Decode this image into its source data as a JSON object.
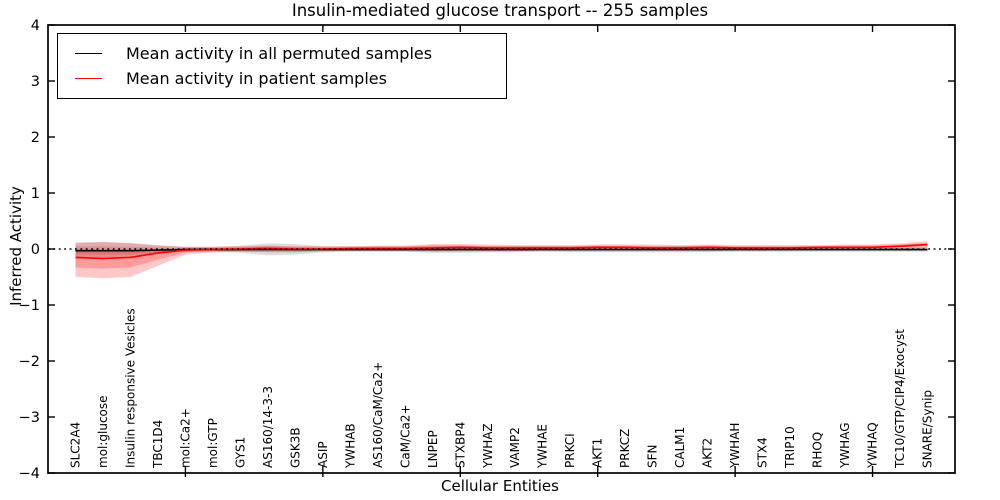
{
  "title": "Insulin-mediated glucose transport -- 255 samples",
  "legend": {
    "items": [
      {
        "label": "Mean activity in all permuted samples",
        "color": "#000000"
      },
      {
        "label": "Mean activity in patient samples",
        "color": "#ff0000"
      }
    ]
  },
  "chart_data": {
    "type": "line",
    "title": "Insulin-mediated glucose transport -- 255 samples",
    "xlabel": "Cellular Entities",
    "ylabel": "Inferred Activity",
    "ylim": [
      -4,
      4
    ],
    "yticks": [
      {
        "value": 4,
        "label": "4"
      },
      {
        "value": 3,
        "label": "3"
      },
      {
        "value": 2,
        "label": "2"
      },
      {
        "value": 1,
        "label": "1"
      },
      {
        "value": 0,
        "label": "0"
      },
      {
        "value": -1,
        "label": "−1"
      },
      {
        "value": -2,
        "label": "−2"
      },
      {
        "value": -3,
        "label": "−3"
      },
      {
        "value": -4,
        "label": "−4"
      }
    ],
    "x_major_tick_units": [
      5,
      10,
      15,
      20,
      25,
      30
    ],
    "zero_line": {
      "style": "dotted",
      "color": "#000000",
      "y": 0
    },
    "legend_position": "upper-left",
    "grid": false,
    "categories": [
      "SLC2A4",
      "mol:glucose",
      "Insulin responsive Vesicles",
      "TBC1D4",
      "mol:Ca2+",
      "mol:GTP",
      "GYS1",
      "AS160/14-3-3",
      "GSK3B",
      "ASIP",
      "YWHAB",
      "AS160/CaM/Ca2+",
      "CaM/Ca2+",
      "LNPEP",
      "STXBP4",
      "YWHAZ",
      "VAMP2",
      "YWHAE",
      "PRKCI",
      "AKT1",
      "PRKCZ",
      "SFN",
      "CALM1",
      "AKT2",
      "YWHAH",
      "STX4",
      "TRIP10",
      "RHOQ",
      "YWHAG",
      "YWHAQ",
      "TC10/GTP/CIP4/Exocyst",
      "SNARE/Synip"
    ],
    "series": [
      {
        "name": "Mean activity in all permuted samples",
        "color": "#000000",
        "values": [
          -0.03,
          -0.03,
          -0.03,
          -0.02,
          -0.01,
          -0.01,
          -0.01,
          -0.01,
          -0.01,
          -0.01,
          -0.01,
          -0.01,
          -0.01,
          -0.01,
          -0.01,
          -0.01,
          -0.01,
          -0.01,
          -0.01,
          -0.01,
          -0.01,
          -0.01,
          -0.01,
          -0.01,
          -0.01,
          -0.01,
          -0.01,
          -0.01,
          -0.01,
          -0.01,
          -0.01,
          -0.01
        ]
      },
      {
        "name": "Mean activity in patient samples",
        "color": "#ff0000",
        "values": [
          -0.15,
          -0.17,
          -0.15,
          -0.07,
          -0.02,
          -0.01,
          0.0,
          0.01,
          0.0,
          0.0,
          0.01,
          0.01,
          0.01,
          0.02,
          0.03,
          0.02,
          0.02,
          0.02,
          0.02,
          0.03,
          0.03,
          0.02,
          0.02,
          0.03,
          0.02,
          0.02,
          0.02,
          0.03,
          0.03,
          0.03,
          0.05,
          0.08
        ]
      }
    ],
    "bands": [
      {
        "name": "permuted-range-outer",
        "color": "#8a8a8a",
        "opacity": 0.3,
        "upper": [
          0.12,
          0.13,
          0.11,
          0.07,
          0.04,
          0.04,
          0.06,
          0.1,
          0.09,
          0.05,
          0.05,
          0.05,
          0.05,
          0.06,
          0.06,
          0.05,
          0.05,
          0.05,
          0.05,
          0.05,
          0.05,
          0.05,
          0.05,
          0.05,
          0.04,
          0.04,
          0.04,
          0.04,
          0.04,
          0.04,
          0.04,
          0.04
        ],
        "lower": [
          -0.15,
          -0.16,
          -0.14,
          -0.09,
          -0.05,
          -0.05,
          -0.07,
          -0.11,
          -0.1,
          -0.06,
          -0.05,
          -0.05,
          -0.05,
          -0.07,
          -0.07,
          -0.06,
          -0.06,
          -0.05,
          -0.06,
          -0.06,
          -0.06,
          -0.06,
          -0.06,
          -0.06,
          -0.05,
          -0.05,
          -0.05,
          -0.05,
          -0.05,
          -0.05,
          -0.05,
          -0.05
        ]
      },
      {
        "name": "permuted-range-inner",
        "color": "#8a8a8a",
        "opacity": 0.3,
        "upper": [
          0.05,
          0.05,
          0.04,
          0.03,
          0.02,
          0.02,
          0.03,
          0.05,
          0.04,
          0.02,
          0.02,
          0.02,
          0.02,
          0.03,
          0.03,
          0.02,
          0.02,
          0.02,
          0.02,
          0.02,
          0.02,
          0.02,
          0.02,
          0.02,
          0.02,
          0.02,
          0.02,
          0.02,
          0.02,
          0.02,
          0.02,
          0.02
        ],
        "lower": [
          -0.09,
          -0.1,
          -0.09,
          -0.06,
          -0.03,
          -0.03,
          -0.04,
          -0.06,
          -0.06,
          -0.04,
          -0.03,
          -0.03,
          -0.03,
          -0.04,
          -0.04,
          -0.04,
          -0.04,
          -0.03,
          -0.04,
          -0.04,
          -0.04,
          -0.04,
          -0.04,
          -0.04,
          -0.03,
          -0.03,
          -0.03,
          -0.03,
          -0.03,
          -0.03,
          -0.03,
          -0.03
        ]
      },
      {
        "name": "patient-range-outer",
        "color": "#ff0000",
        "opacity": 0.22,
        "upper": [
          0.1,
          0.12,
          0.1,
          0.06,
          0.04,
          0.04,
          0.05,
          0.06,
          0.05,
          0.05,
          0.05,
          0.06,
          0.06,
          0.09,
          0.09,
          0.08,
          0.07,
          0.07,
          0.07,
          0.08,
          0.08,
          0.08,
          0.07,
          0.08,
          0.07,
          0.07,
          0.07,
          0.07,
          0.08,
          0.08,
          0.1,
          0.14
        ],
        "lower": [
          -0.5,
          -0.52,
          -0.5,
          -0.3,
          -0.1,
          -0.06,
          -0.05,
          -0.05,
          -0.05,
          -0.04,
          -0.04,
          -0.04,
          -0.04,
          -0.05,
          -0.04,
          -0.04,
          -0.04,
          -0.03,
          -0.03,
          -0.03,
          -0.03,
          -0.03,
          -0.03,
          -0.03,
          -0.03,
          -0.03,
          -0.02,
          -0.02,
          -0.02,
          -0.02,
          0.0,
          0.02
        ],
        "layer2_upper": [
          -0.03,
          -0.03,
          -0.03,
          -0.01,
          0.01,
          0.02,
          0.03,
          0.04,
          0.03,
          0.03,
          0.03,
          0.04,
          0.04,
          0.06,
          0.06,
          0.05,
          0.05,
          0.05,
          0.05,
          0.06,
          0.06,
          0.05,
          0.05,
          0.06,
          0.05,
          0.05,
          0.05,
          0.05,
          0.06,
          0.06,
          0.08,
          0.11
        ],
        "layer2_lower": [
          -0.33,
          -0.35,
          -0.33,
          -0.19,
          -0.06,
          -0.04,
          -0.03,
          -0.02,
          -0.03,
          -0.02,
          -0.02,
          -0.02,
          -0.02,
          -0.02,
          -0.01,
          -0.01,
          -0.01,
          -0.01,
          -0.01,
          0.0,
          0.0,
          0.0,
          0.0,
          0.0,
          0.0,
          0.0,
          0.0,
          0.0,
          0.01,
          0.01,
          0.03,
          0.05
        ]
      }
    ]
  }
}
